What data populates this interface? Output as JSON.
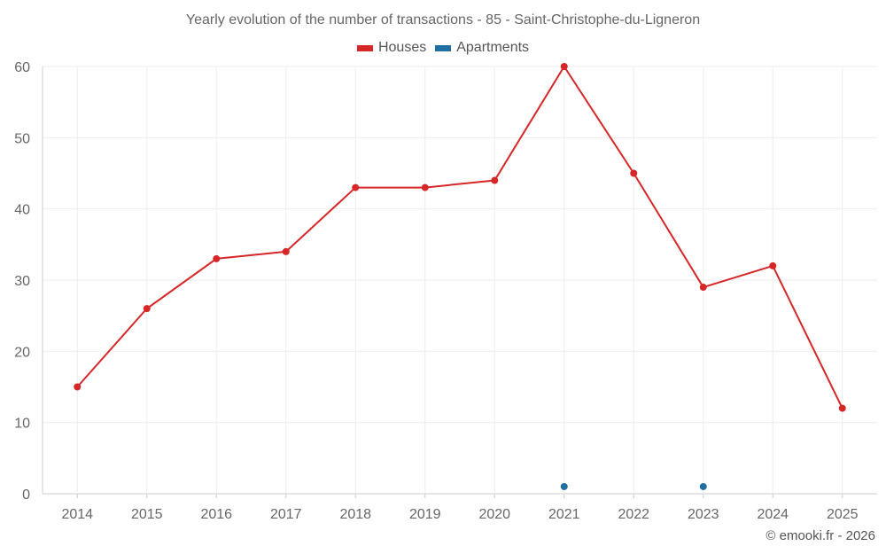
{
  "chart_data": {
    "type": "line",
    "title": "Yearly evolution of the number of transactions - 85 - Saint-Christophe-du-Ligneron",
    "categories": [
      "2014",
      "2015",
      "2016",
      "2017",
      "2018",
      "2019",
      "2020",
      "2021",
      "2022",
      "2023",
      "2024",
      "2025"
    ],
    "series": [
      {
        "name": "Houses",
        "color": "#d62728",
        "values": [
          15,
          26,
          33,
          34,
          43,
          43,
          44,
          60,
          45,
          29,
          32,
          12
        ]
      },
      {
        "name": "Apartments",
        "color": "#1f6fa3",
        "values": [
          null,
          null,
          null,
          null,
          null,
          null,
          null,
          1,
          null,
          1,
          null,
          null
        ]
      }
    ],
    "ylim": [
      0,
      60
    ],
    "yticks": [
      0,
      10,
      20,
      30,
      40,
      50,
      60
    ],
    "grid": true,
    "legend": "top-center",
    "xlabel": "",
    "ylabel": ""
  },
  "credit": "© emooki.fr - 2026"
}
